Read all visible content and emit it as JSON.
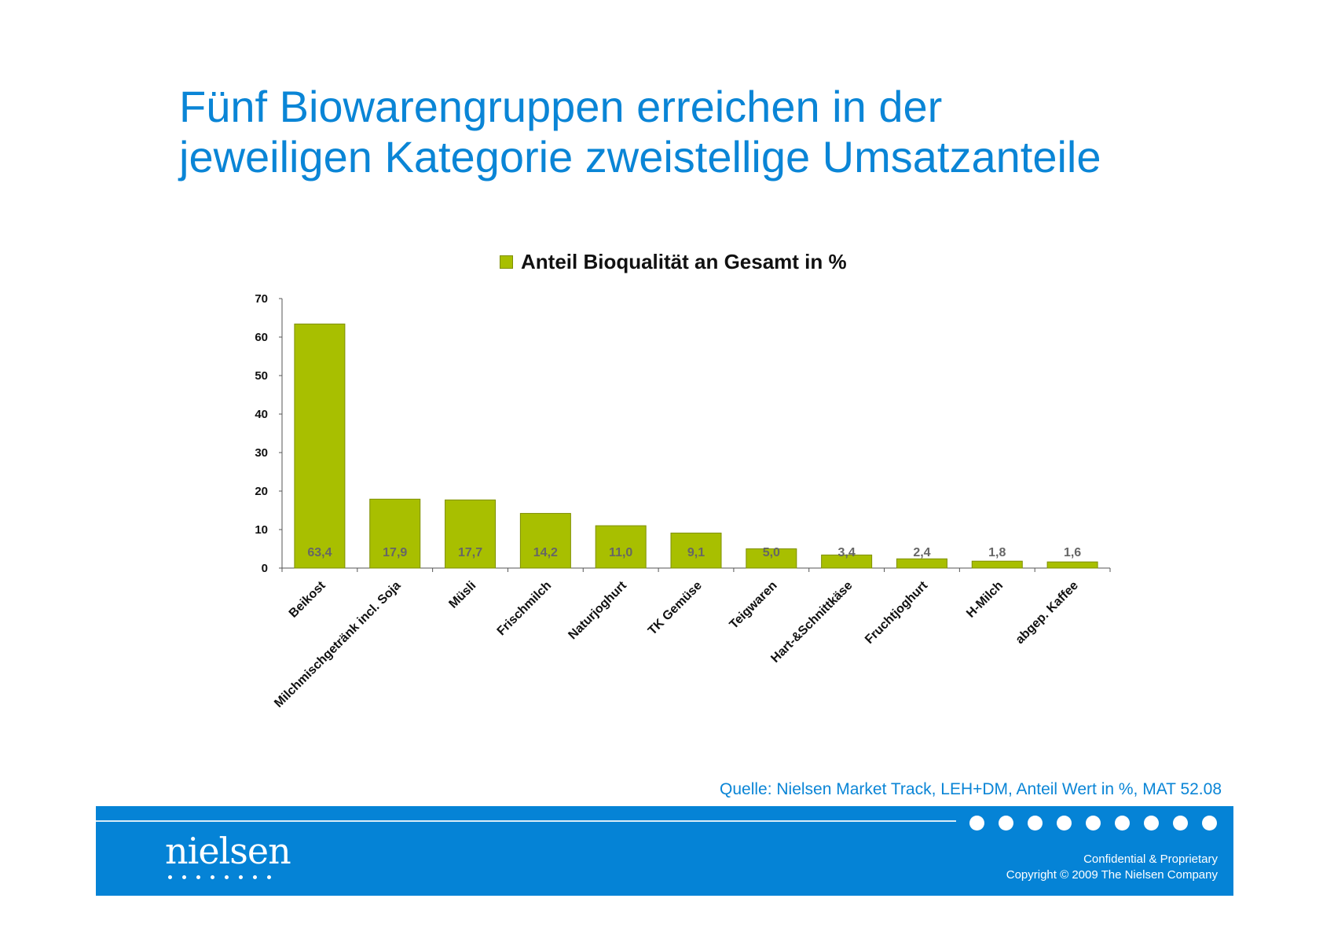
{
  "title": "Fünf Biowarengruppen erreichen in der jeweiligen Kategorie zweistellige Umsatzanteile",
  "title_lines": [
    "Fünf Biowarengruppen erreichen in der",
    "jeweiligen Kategorie zweistellige Umsatzanteile"
  ],
  "chart_data": {
    "type": "bar",
    "title": "",
    "xlabel": "",
    "ylabel": "",
    "ylim": [
      0,
      70
    ],
    "yticks": [
      0,
      10,
      20,
      30,
      40,
      50,
      60,
      70
    ],
    "grid": false,
    "legend_position": "top",
    "categories": [
      "Beikost",
      "Milchmischgetränk incl. Soja",
      "Müsli",
      "Frischmilch",
      "Naturjoghurt",
      "TK Gemüse",
      "Teigwaren",
      "Hart-&Schnittkäse",
      "Fruchtjoghurt",
      "H-Milch",
      "abgep. Kaffee"
    ],
    "series": [
      {
        "name": "Anteil Bioqualität an Gesamt in %",
        "values": [
          63.4,
          17.9,
          17.7,
          14.2,
          11.0,
          9.1,
          5.0,
          3.4,
          2.4,
          1.8,
          1.6
        ],
        "labels": [
          "63,4",
          "17,9",
          "17,7",
          "14,2",
          "11,0",
          "9,1",
          "5,0",
          "3,4",
          "2,4",
          "1,8",
          "1,6"
        ],
        "color": "#a8bf00"
      }
    ]
  },
  "source": "Quelle: Nielsen Market Track, LEH+DM, Anteil Wert in %, MAT 52.08",
  "footer": {
    "logo": "nielsen",
    "confidential": "Confidential & Proprietary",
    "copyright": "Copyright © 2009 The Nielsen Company",
    "brand_color": "#0583d6"
  }
}
